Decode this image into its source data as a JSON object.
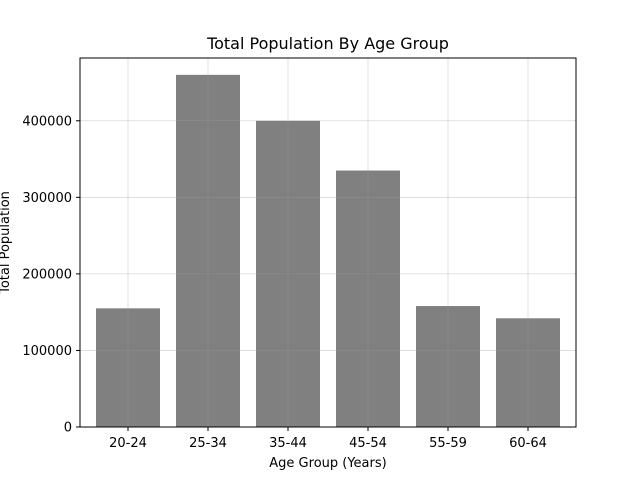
{
  "chart_data": {
    "type": "bar",
    "title": "Total Population By Age Group",
    "xlabel": "Age Group (Years)",
    "ylabel": "Total Population",
    "categories": [
      "20-24",
      "25-34",
      "35-44",
      "45-54",
      "55-59",
      "60-64"
    ],
    "values": [
      155000,
      460000,
      400000,
      335000,
      158000,
      142000
    ],
    "ylim": [
      0,
      482000
    ],
    "yticks": [
      0,
      100000,
      200000,
      300000,
      400000
    ],
    "ytick_labels": [
      "0",
      "100000",
      "200000",
      "300000",
      "400000"
    ],
    "grid": true,
    "legend": "none",
    "bar_color": "#808080",
    "grid_color": "#e6e6e6"
  }
}
